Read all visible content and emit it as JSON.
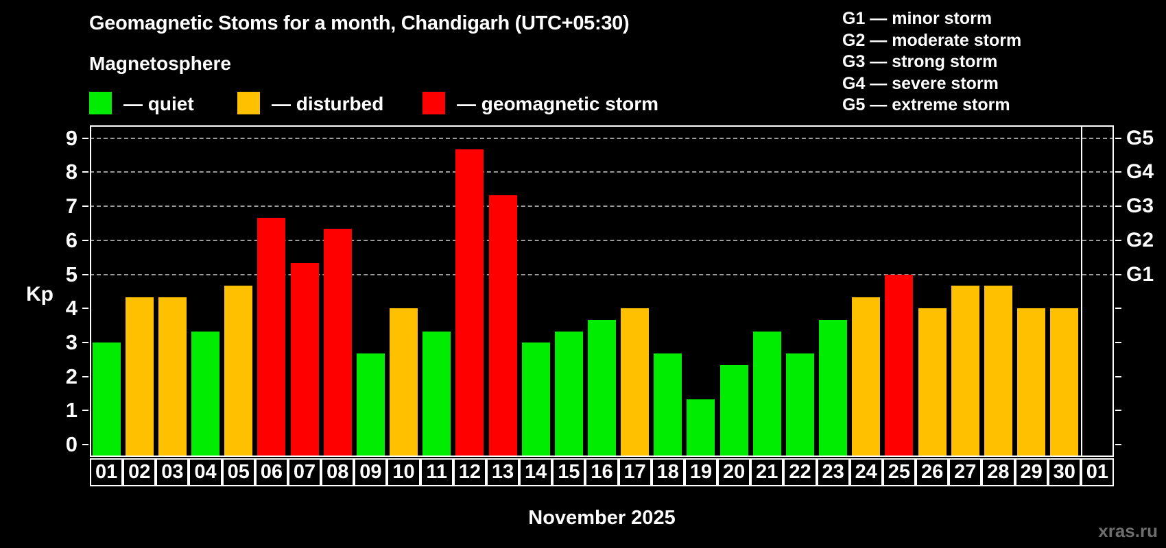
{
  "title": "Geomagnetic Stoms for a month, Chandigarh (UTC+05:30)",
  "subtitle": "Magnetosphere",
  "legend": {
    "items": [
      {
        "key": "quiet",
        "label": "— quiet",
        "color": "#00ec00"
      },
      {
        "key": "disturbed",
        "label": "— disturbed",
        "color": "#ffc000"
      },
      {
        "key": "storm",
        "label": "— geomagnetic storm",
        "color": "#ff0000"
      }
    ]
  },
  "g_legend": [
    "G1 — minor storm",
    "G2 — moderate storm",
    "G3 — strong storm",
    "G4 — severe storm",
    "G5 — extreme storm"
  ],
  "watermark": "xras.ru",
  "chart_data": {
    "type": "bar",
    "title": "Geomagnetic Stoms for a month, Chandigarh (UTC+05:30)",
    "xlabel": "November 2025",
    "ylabel": "Kp",
    "ylim": [
      0,
      9
    ],
    "yticks": [
      0,
      1,
      2,
      3,
      4,
      5,
      6,
      7,
      8,
      9
    ],
    "grid": "dashed horizontal lines at Kp 5..9 only",
    "legend_position": "top-left",
    "right_axis_labels": [
      {
        "kp": 5,
        "label": "G1"
      },
      {
        "kp": 6,
        "label": "G2"
      },
      {
        "kp": 7,
        "label": "G3"
      },
      {
        "kp": 8,
        "label": "G4"
      },
      {
        "kp": 9,
        "label": "G5"
      }
    ],
    "bars": [
      {
        "day": "01",
        "kp": 3.0,
        "status": "quiet"
      },
      {
        "day": "02",
        "kp": 4.33,
        "status": "disturbed"
      },
      {
        "day": "03",
        "kp": 4.33,
        "status": "disturbed"
      },
      {
        "day": "04",
        "kp": 3.33,
        "status": "quiet"
      },
      {
        "day": "05",
        "kp": 4.67,
        "status": "disturbed"
      },
      {
        "day": "06",
        "kp": 6.67,
        "status": "storm"
      },
      {
        "day": "07",
        "kp": 5.33,
        "status": "storm"
      },
      {
        "day": "08",
        "kp": 6.33,
        "status": "storm"
      },
      {
        "day": "09",
        "kp": 2.67,
        "status": "quiet"
      },
      {
        "day": "10",
        "kp": 4.0,
        "status": "disturbed"
      },
      {
        "day": "11",
        "kp": 3.33,
        "status": "quiet"
      },
      {
        "day": "12",
        "kp": 8.67,
        "status": "storm"
      },
      {
        "day": "13",
        "kp": 7.33,
        "status": "storm"
      },
      {
        "day": "14",
        "kp": 3.0,
        "status": "quiet"
      },
      {
        "day": "15",
        "kp": 3.33,
        "status": "quiet"
      },
      {
        "day": "16",
        "kp": 3.67,
        "status": "quiet"
      },
      {
        "day": "17",
        "kp": 4.0,
        "status": "disturbed"
      },
      {
        "day": "18",
        "kp": 2.67,
        "status": "quiet"
      },
      {
        "day": "19",
        "kp": 1.33,
        "status": "quiet"
      },
      {
        "day": "20",
        "kp": 2.33,
        "status": "quiet"
      },
      {
        "day": "21",
        "kp": 3.33,
        "status": "quiet"
      },
      {
        "day": "22",
        "kp": 2.67,
        "status": "quiet"
      },
      {
        "day": "23",
        "kp": 3.67,
        "status": "quiet"
      },
      {
        "day": "24",
        "kp": 4.33,
        "status": "disturbed"
      },
      {
        "day": "25",
        "kp": 5.0,
        "status": "storm"
      },
      {
        "day": "26",
        "kp": 4.0,
        "status": "disturbed"
      },
      {
        "day": "27",
        "kp": 4.67,
        "status": "disturbed"
      },
      {
        "day": "28",
        "kp": 4.67,
        "status": "disturbed"
      },
      {
        "day": "29",
        "kp": 4.0,
        "status": "disturbed"
      },
      {
        "day": "30",
        "kp": 4.0,
        "status": "disturbed"
      },
      {
        "day": "01",
        "kp": null,
        "status": null
      }
    ]
  }
}
